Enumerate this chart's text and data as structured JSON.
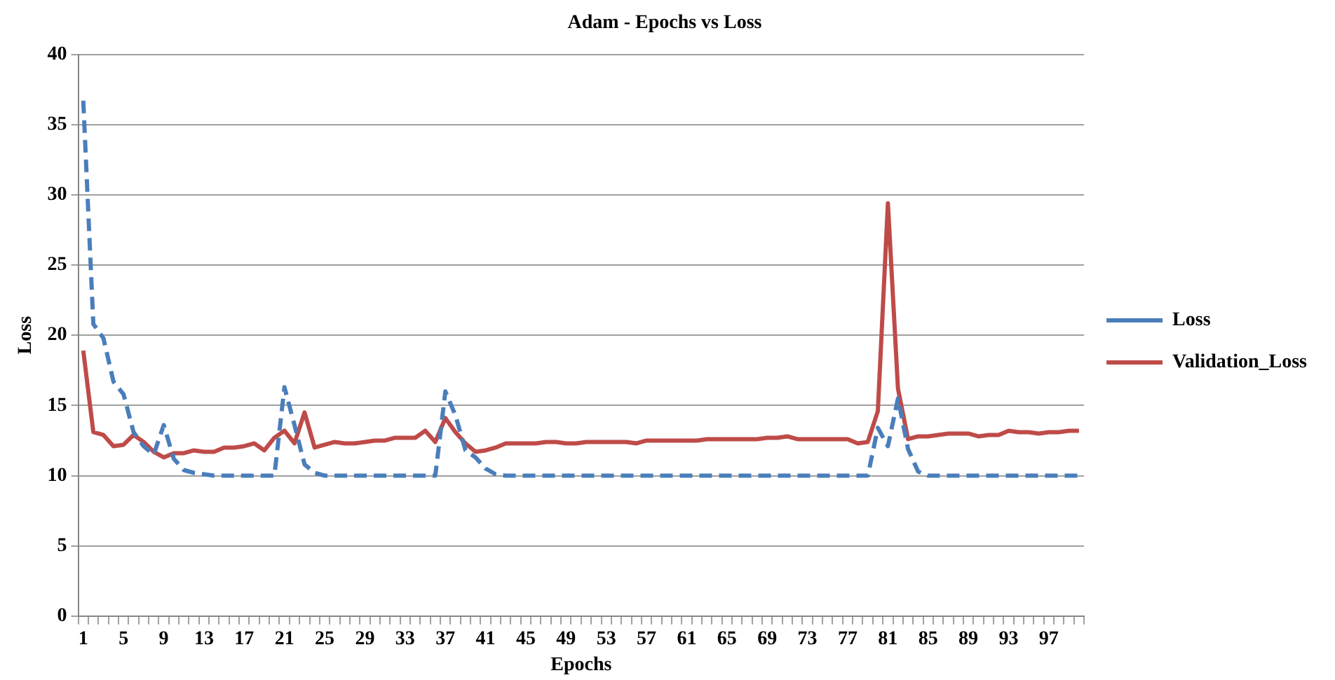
{
  "chart_data": {
    "type": "line",
    "title": "Adam - Epochs vs Loss",
    "xlabel": "Epochs",
    "ylabel": "Loss",
    "categories": [
      "1",
      null,
      null,
      null,
      "5",
      null,
      null,
      null,
      "9",
      null,
      null,
      null,
      "13",
      null,
      null,
      null,
      "17",
      null,
      null,
      null,
      "21",
      null,
      null,
      null,
      "25",
      null,
      null,
      null,
      "29",
      null,
      null,
      null,
      "33",
      null,
      null,
      null,
      "37",
      null,
      null,
      null,
      "41",
      null,
      null,
      null,
      "45",
      null,
      null,
      null,
      "49",
      null,
      null,
      null,
      "53",
      null,
      null,
      null,
      "57",
      null,
      null,
      null,
      "61",
      null,
      null,
      null,
      "65",
      null,
      null,
      null,
      "69",
      null,
      null,
      null,
      "73",
      null,
      null,
      null,
      "77",
      null,
      null,
      null,
      "81",
      null,
      null,
      null,
      "85",
      null,
      null,
      null,
      "89",
      null,
      null,
      null,
      "93",
      null,
      null,
      null,
      "97",
      null,
      null,
      null
    ],
    "series": [
      {
        "name": "Loss",
        "color": "#4a7ebb",
        "line_style": "dashed",
        "values": [
          36.7,
          20.8,
          19.8,
          16.7,
          15.8,
          13.1,
          12.1,
          11.5,
          13.6,
          11.2,
          10.4,
          10.2,
          10.1,
          10,
          10,
          10,
          10,
          10,
          10,
          10,
          16.3,
          13.6,
          10.8,
          10.2,
          10,
          10,
          10,
          10,
          10,
          10,
          10,
          10,
          10,
          10,
          10,
          10,
          16.0,
          14.3,
          11.8,
          11.3,
          10.5,
          10.1,
          10,
          10,
          10,
          10,
          10,
          10,
          10,
          10,
          10,
          10,
          10,
          10,
          10,
          10,
          10,
          10,
          10,
          10,
          10,
          10,
          10,
          10,
          10,
          10,
          10,
          10,
          10,
          10,
          10,
          10,
          10,
          10,
          10,
          10,
          10,
          10,
          10,
          13.4,
          12.1,
          15.5,
          11.9,
          10.3,
          10,
          10,
          10,
          10,
          10,
          10,
          10,
          10,
          10,
          10,
          10,
          10,
          10,
          10,
          10,
          10
        ]
      },
      {
        "name": "Validation_Loss",
        "color": "#be4b48",
        "line_style": "solid",
        "values": [
          18.9,
          13.1,
          12.9,
          12.1,
          12.2,
          12.9,
          12.4,
          11.7,
          11.3,
          11.6,
          11.6,
          11.8,
          11.7,
          11.7,
          12.0,
          12.0,
          12.1,
          12.3,
          11.8,
          12.7,
          13.2,
          12.3,
          14.5,
          12.0,
          12.2,
          12.4,
          12.3,
          12.3,
          12.4,
          12.5,
          12.5,
          12.7,
          12.7,
          12.7,
          13.2,
          12.4,
          14.1,
          13.1,
          12.3,
          11.7,
          11.8,
          12.0,
          12.3,
          12.3,
          12.3,
          12.3,
          12.4,
          12.4,
          12.3,
          12.3,
          12.4,
          12.4,
          12.4,
          12.4,
          12.4,
          12.3,
          12.5,
          12.5,
          12.5,
          12.5,
          12.5,
          12.5,
          12.6,
          12.6,
          12.6,
          12.6,
          12.6,
          12.6,
          12.7,
          12.7,
          12.8,
          12.6,
          12.6,
          12.6,
          12.6,
          12.6,
          12.6,
          12.3,
          12.4,
          14.6,
          29.4,
          16.2,
          12.6,
          12.8,
          12.8,
          12.9,
          13.0,
          13.0,
          13.0,
          12.8,
          12.9,
          12.9,
          13.2,
          13.1,
          13.1,
          13.0,
          13.1,
          13.1,
          13.2,
          13.2
        ]
      }
    ],
    "ylim": [
      0,
      40
    ],
    "yticks": [
      0,
      5,
      10,
      15,
      20,
      25,
      30,
      35,
      40
    ],
    "grid": "y",
    "legend": "right",
    "marker": "none"
  }
}
